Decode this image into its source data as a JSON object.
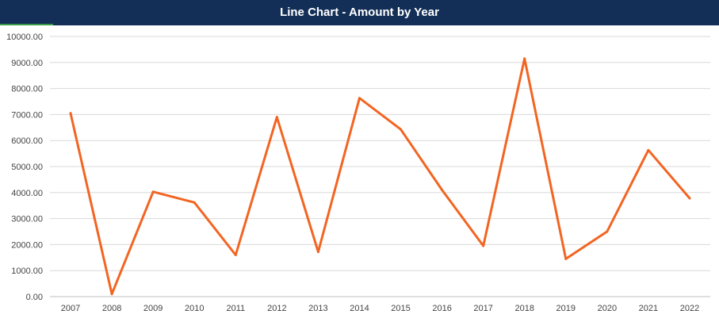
{
  "title": "Line Chart - Amount by Year",
  "colors": {
    "header_bg": "#132f57",
    "line": "#f26522",
    "grid": "#d9d9d9",
    "accent": "#3a9a4a"
  },
  "chart_data": {
    "type": "line",
    "title": "Line Chart - Amount by Year",
    "xlabel": "",
    "ylabel": "",
    "categories": [
      "2007",
      "2008",
      "2009",
      "2010",
      "2011",
      "2012",
      "2013",
      "2014",
      "2015",
      "2016",
      "2017",
      "2018",
      "2019",
      "2020",
      "2021",
      "2022"
    ],
    "series": [
      {
        "values": [
          7050,
          100,
          4030,
          3620,
          1600,
          6900,
          1720,
          7630,
          6430,
          4100,
          1950,
          9150,
          1450,
          2500,
          5630,
          3780
        ]
      }
    ],
    "ylim": [
      0,
      10000
    ],
    "y_ticks": [
      "0.00",
      "1000.00",
      "2000.00",
      "3000.00",
      "4000.00",
      "5000.00",
      "6000.00",
      "7000.00",
      "8000.00",
      "9000.00",
      "10000.00"
    ],
    "grid": true,
    "legend": "none"
  }
}
